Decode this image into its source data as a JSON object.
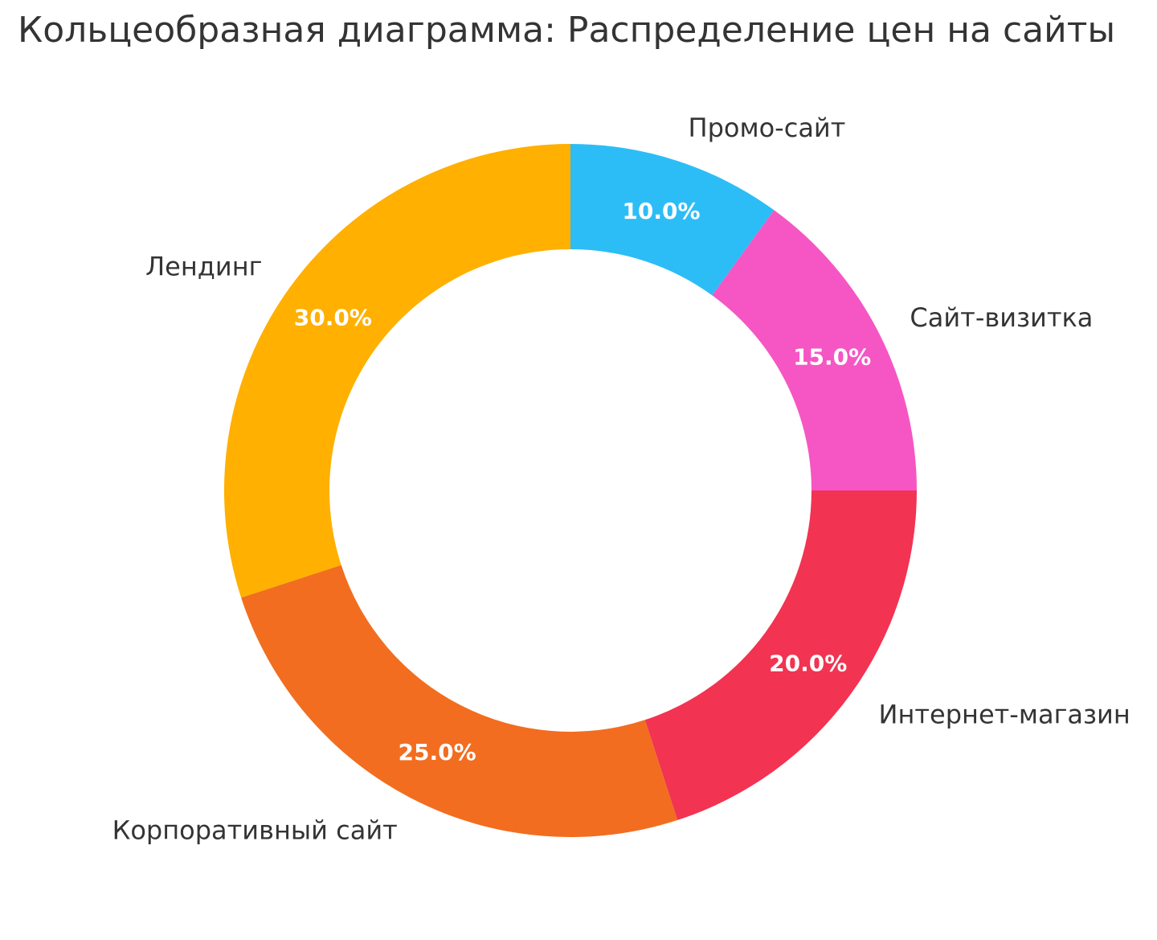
{
  "title": "Кольцеобразная диаграмма: Распределение цен на сайты",
  "chart_data": {
    "type": "pie",
    "subtype": "donut",
    "title": "Кольцеобразная диаграмма: Распределение цен на сайты",
    "categories": [
      "Промо-сайт",
      "Сайт-визитка",
      "Интернет-магазин",
      "Корпоративный сайт",
      "Лендинг"
    ],
    "values": [
      10.0,
      15.0,
      20.0,
      25.0,
      30.0
    ],
    "value_labels": [
      "10.0%",
      "15.0%",
      "20.0%",
      "25.0%",
      "30.0%"
    ],
    "colors": [
      "#2DBDF6",
      "#F556C4",
      "#F23351",
      "#F26D1F",
      "#FFB000"
    ],
    "start": "12-o'clock",
    "direction": "clockwise",
    "donut_hole_ratio": 0.696,
    "legend": "none",
    "grid": false,
    "category_label_color": "#343434",
    "value_label_color": "#FFFFFF",
    "background_color": "#FFFFFF"
  }
}
